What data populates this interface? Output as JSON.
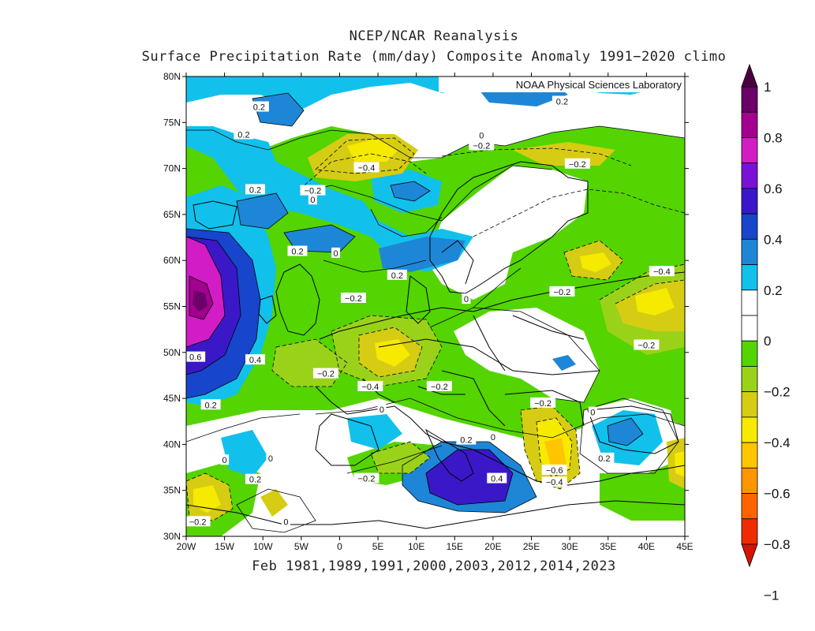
{
  "title": "NCEP/NCAR Reanalysis",
  "subtitle": "Surface Precipitation Rate (mm/day) Composite Anomaly 1991−2020 climo",
  "credit": "NOAA Physical Sciences Laboratory",
  "xlabel": "Feb 1981,1989,1991,2000,2003,2012,2014,2023",
  "lat_ticks": [
    "80N",
    "75N",
    "70N",
    "65N",
    "60N",
    "55N",
    "50N",
    "45N",
    "40N",
    "35N",
    "30N"
  ],
  "lon_ticks": [
    "20W",
    "15W",
    "10W",
    "5W",
    "0",
    "5E",
    "10E",
    "15E",
    "20E",
    "25E",
    "30E",
    "35E",
    "40E",
    "45E"
  ],
  "colorbar": {
    "labels": [
      "1",
      "0.8",
      "0.6",
      "0.4",
      "0.2",
      "0",
      "−0.2",
      "−0.4",
      "−0.6",
      "−0.8",
      "−1"
    ],
    "colors": [
      "#6a0068",
      "#a3008f",
      "#d21cc6",
      "#7a12d6",
      "#3a18c8",
      "#1745cc",
      "#1e86d6",
      "#12c0ec",
      "#ffffff",
      "#ffffff",
      "#54d400",
      "#9ad21a",
      "#d6cc14",
      "#f5ea00",
      "#ffc600",
      "#ff9600",
      "#ff6400",
      "#ee2c00"
    ],
    "top_color": "#4a0040",
    "bottom_color": "#d41400"
  },
  "contour_labels": [
    {
      "t": "0.2",
      "lon": -10.5,
      "lat": 76.7
    },
    {
      "t": "0.2",
      "lon": -12.5,
      "lat": 73.7
    },
    {
      "t": "0.2",
      "lon": 29.0,
      "lat": 77.3
    },
    {
      "t": "0",
      "lon": 18.5,
      "lat": 73.6
    },
    {
      "t": "−0.2",
      "lon": 18.5,
      "lat": 72.5
    },
    {
      "t": "−0.4",
      "lon": 3.5,
      "lat": 70.1
    },
    {
      "t": "−0.2",
      "lon": -3.5,
      "lat": 67.6
    },
    {
      "t": "0",
      "lon": -3.5,
      "lat": 66.6
    },
    {
      "t": "−0.2",
      "lon": 31.0,
      "lat": 70.5
    },
    {
      "t": "0.2",
      "lon": -11.0,
      "lat": 67.7
    },
    {
      "t": "0.2",
      "lon": -5.5,
      "lat": 61.0
    },
    {
      "t": "0",
      "lon": -0.5,
      "lat": 60.8
    },
    {
      "t": "0.2",
      "lon": 7.5,
      "lat": 58.4
    },
    {
      "t": "0",
      "lon": 16.5,
      "lat": 55.8
    },
    {
      "t": "−0.2",
      "lon": 1.8,
      "lat": 55.9
    },
    {
      "t": "−0.2",
      "lon": 29.0,
      "lat": 56.6
    },
    {
      "t": "−0.4",
      "lon": 42.0,
      "lat": 58.8
    },
    {
      "t": "−0.2",
      "lon": 40.0,
      "lat": 50.8
    },
    {
      "t": "0.6",
      "lon": -18.8,
      "lat": 49.5
    },
    {
      "t": "0.4",
      "lon": -11.0,
      "lat": 49.2
    },
    {
      "t": "−0.2",
      "lon": -1.8,
      "lat": 47.7
    },
    {
      "t": "−0.4",
      "lon": 4.0,
      "lat": 46.3
    },
    {
      "t": "−0.2",
      "lon": 13.0,
      "lat": 46.3
    },
    {
      "t": "0.2",
      "lon": -16.8,
      "lat": 44.3
    },
    {
      "t": "0",
      "lon": 5.5,
      "lat": 43.8
    },
    {
      "t": "−0.2",
      "lon": 26.5,
      "lat": 44.5
    },
    {
      "t": "0",
      "lon": 33.0,
      "lat": 43.5
    },
    {
      "t": "0.2",
      "lon": 16.5,
      "lat": 40.5
    },
    {
      "t": "0",
      "lon": 20.0,
      "lat": 40.8
    },
    {
      "t": "0",
      "lon": -15.0,
      "lat": 38.3
    },
    {
      "t": "0",
      "lon": -9.0,
      "lat": 38.5
    },
    {
      "t": "0.2",
      "lon": -11.0,
      "lat": 36.2
    },
    {
      "t": "−0.2",
      "lon": 3.5,
      "lat": 36.3
    },
    {
      "t": "0.4",
      "lon": 20.5,
      "lat": 36.3
    },
    {
      "t": "−0.6",
      "lon": 28.0,
      "lat": 37.2
    },
    {
      "t": "−0.4",
      "lon": 28.0,
      "lat": 35.9
    },
    {
      "t": "0.2",
      "lon": 34.5,
      "lat": 38.5
    },
    {
      "t": "−0.2",
      "lon": -18.5,
      "lat": 31.6
    },
    {
      "t": "0",
      "lon": -7.0,
      "lat": 31.6
    }
  ]
}
